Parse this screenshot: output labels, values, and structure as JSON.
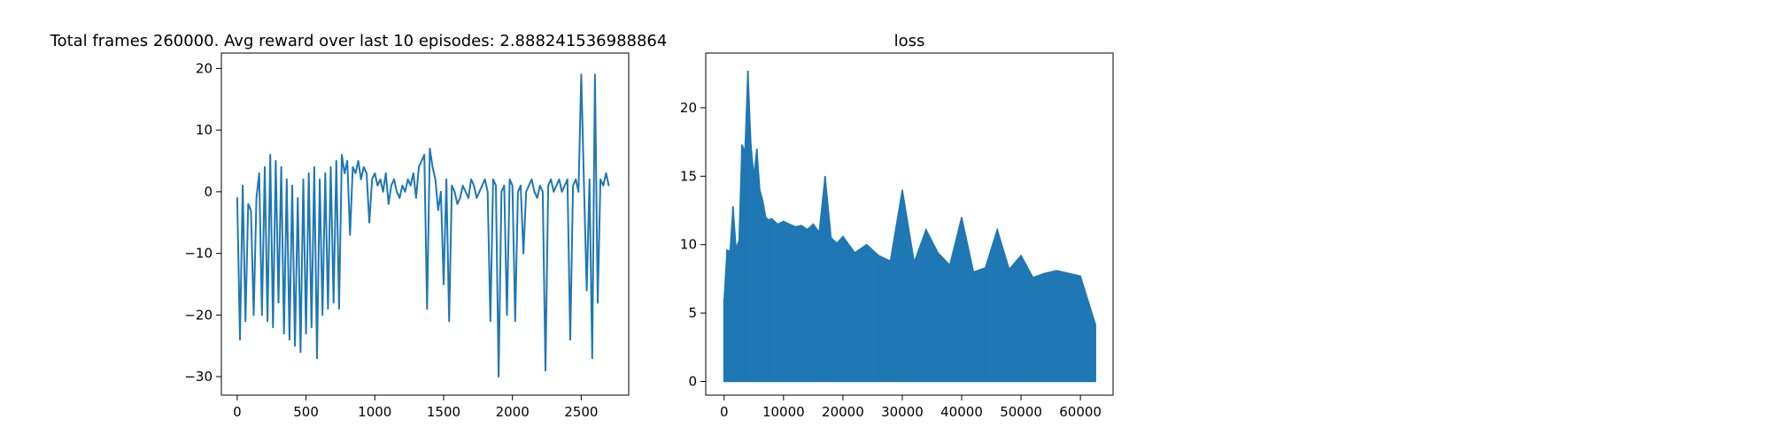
{
  "chart_data": [
    {
      "type": "line",
      "title": "Total frames 260000. Avg reward over last 10 episodes: 2.888241536988864",
      "xlabel": "",
      "ylabel": "",
      "xlim": [
        -115,
        2845
      ],
      "ylim": [
        -33,
        22.5
      ],
      "xticks": [
        0,
        500,
        1000,
        1500,
        2000,
        2500
      ],
      "yticks": [
        -30,
        -20,
        -10,
        0,
        10,
        20
      ],
      "grid": false,
      "series_color": "#1f77b4",
      "series": [
        {
          "name": "",
          "x": [
            0,
            20,
            40,
            60,
            80,
            100,
            120,
            140,
            160,
            180,
            200,
            220,
            240,
            260,
            280,
            300,
            320,
            340,
            360,
            380,
            400,
            420,
            440,
            460,
            480,
            500,
            520,
            540,
            560,
            580,
            600,
            620,
            640,
            660,
            680,
            700,
            720,
            740,
            760,
            780,
            800,
            820,
            840,
            860,
            880,
            900,
            920,
            940,
            960,
            980,
            1000,
            1020,
            1040,
            1060,
            1080,
            1100,
            1120,
            1140,
            1160,
            1180,
            1200,
            1220,
            1240,
            1260,
            1280,
            1300,
            1320,
            1340,
            1360,
            1380,
            1400,
            1420,
            1440,
            1460,
            1480,
            1500,
            1520,
            1540,
            1560,
            1580,
            1600,
            1620,
            1640,
            1660,
            1680,
            1700,
            1720,
            1740,
            1760,
            1780,
            1800,
            1820,
            1840,
            1860,
            1880,
            1900,
            1920,
            1940,
            1960,
            1980,
            2000,
            2020,
            2040,
            2060,
            2080,
            2100,
            2120,
            2140,
            2160,
            2180,
            2200,
            2220,
            2240,
            2260,
            2280,
            2300,
            2320,
            2340,
            2360,
            2380,
            2400,
            2420,
            2440,
            2460,
            2480,
            2500,
            2520,
            2540,
            2560,
            2580,
            2600,
            2620,
            2640,
            2660,
            2680,
            2700
          ],
          "values": [
            -1,
            -24,
            1,
            -21,
            -2,
            -3,
            -20,
            -1,
            3,
            -20,
            4,
            -21,
            6,
            -22,
            5,
            -18,
            4,
            -23,
            2,
            -24,
            1,
            -25,
            -1,
            -26,
            2,
            -23,
            3,
            -22,
            4,
            -27,
            2,
            -20,
            3,
            -19,
            4,
            -18,
            5,
            -19,
            6,
            3,
            5,
            -7,
            4,
            3,
            5,
            2,
            4,
            3,
            -5,
            2,
            3,
            1,
            2,
            0,
            3,
            -2,
            1,
            2,
            0,
            -1,
            1,
            0,
            2,
            1,
            3,
            -1,
            4,
            5,
            6,
            -19,
            7,
            4,
            2,
            -3,
            0,
            -15,
            2,
            -21,
            1,
            0,
            -2,
            -1,
            1,
            0,
            -1,
            2,
            1,
            -1,
            0,
            1,
            2,
            0,
            -21,
            2,
            1,
            -30,
            0,
            1,
            -20,
            2,
            1,
            -21,
            0,
            1,
            -10,
            0,
            1,
            2,
            0,
            -1,
            1,
            0,
            -29,
            1,
            2,
            0,
            1,
            2,
            0,
            1,
            2,
            -24,
            1,
            2,
            0,
            19,
            1,
            -16,
            2,
            -27,
            19,
            -18,
            2,
            1,
            3,
            1
          ]
        }
      ]
    },
    {
      "type": "area",
      "title": "loss",
      "xlabel": "",
      "ylabel": "",
      "xlim": [
        -3100,
        65500
      ],
      "ylim": [
        -1,
        24
      ],
      "xticks": [
        0,
        10000,
        20000,
        30000,
        40000,
        50000,
        60000
      ],
      "yticks": [
        0,
        5,
        10,
        15,
        20
      ],
      "grid": false,
      "series_color": "#1f77b4",
      "series": [
        {
          "name": "",
          "x": [
            0,
            500,
            1000,
            1500,
            2000,
            2500,
            3000,
            3500,
            4000,
            4500,
            5000,
            5500,
            6000,
            6500,
            7000,
            7500,
            8000,
            9000,
            10000,
            11000,
            12000,
            13000,
            14000,
            15000,
            16000,
            17000,
            18000,
            19000,
            20000,
            22000,
            24000,
            26000,
            28000,
            30000,
            32000,
            34000,
            36000,
            38000,
            40000,
            42000,
            44000,
            46000,
            48000,
            50000,
            52000,
            54000,
            56000,
            58000,
            60000,
            62500
          ],
          "values": [
            6,
            9.6,
            9.5,
            12.8,
            9.7,
            10.3,
            17.3,
            16.8,
            22.7,
            17.3,
            15,
            17,
            14,
            13.2,
            12,
            11.8,
            11.9,
            11.5,
            11.7,
            11.5,
            11.3,
            11.4,
            11.1,
            11.5,
            10.9,
            15,
            10.5,
            10.1,
            10.6,
            9.4,
            10,
            9.2,
            8.8,
            14,
            8.7,
            11.1,
            9.4,
            8.5,
            12,
            8,
            8.3,
            11.1,
            8.2,
            9.2,
            7.6,
            7.9,
            8.1,
            7.9,
            7.7,
            4.2
          ]
        }
      ]
    }
  ]
}
